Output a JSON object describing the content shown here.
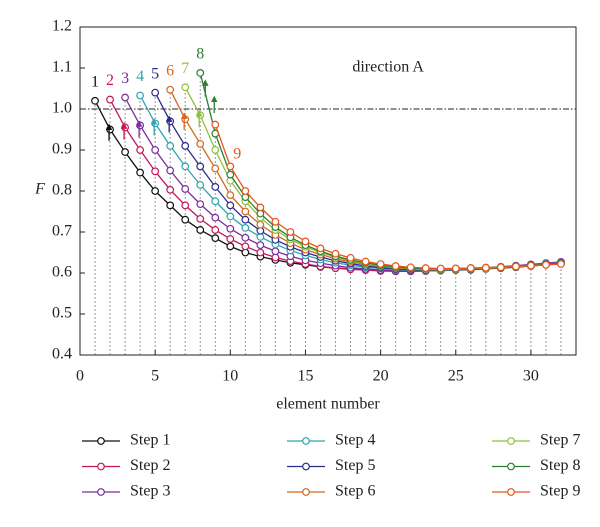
{
  "chart_data": {
    "type": "line",
    "xlabel": "element number",
    "ylabel": "F",
    "annotation": "direction A",
    "peak_labels": [
      "1",
      "2",
      "3",
      "4",
      "5",
      "6",
      "7",
      "8",
      "9"
    ],
    "reference_line": 1,
    "x": [
      1,
      2,
      3,
      4,
      5,
      6,
      7,
      8,
      9,
      10,
      11,
      12,
      13,
      14,
      15,
      16,
      17,
      18,
      19,
      20,
      21,
      22,
      23,
      24,
      25,
      26,
      27,
      28,
      29,
      30,
      31,
      32
    ],
    "xlim": [
      0,
      33
    ],
    "xticks": [
      0,
      5,
      10,
      15,
      20,
      25,
      30
    ],
    "ylim": [
      0.4,
      1.2
    ],
    "yticks": [
      0.4,
      0.5,
      0.6,
      0.7,
      0.8,
      0.9,
      {
        "value": 1,
        "label": "1.0"
      },
      1.1,
      1.2
    ],
    "series": [
      {
        "name": "Step 1",
        "color": "#111111",
        "values": [
          1.02,
          0.95,
          0.895,
          0.845,
          0.8,
          0.765,
          0.73,
          0.705,
          0.685,
          0.665,
          0.65,
          0.64,
          0.632,
          0.625,
          0.62,
          0.615,
          0.612,
          0.61,
          0.608,
          0.606,
          0.605,
          0.605,
          0.605,
          0.606,
          0.607,
          0.608,
          0.61,
          0.612,
          0.614,
          0.617,
          0.62,
          0.623
        ]
      },
      {
        "name": "Step 2",
        "color": "#c2185b",
        "values": [
          null,
          1.023,
          0.955,
          0.9,
          0.848,
          0.803,
          0.765,
          0.732,
          0.705,
          0.683,
          0.665,
          0.65,
          0.638,
          0.629,
          0.622,
          0.616,
          0.612,
          0.609,
          0.607,
          0.605,
          0.604,
          0.604,
          0.605,
          0.606,
          0.608,
          0.61,
          0.612,
          0.614,
          0.617,
          0.62,
          0.623,
          0.626
        ]
      },
      {
        "name": "Step 3",
        "color": "#7b2d9e",
        "values": [
          null,
          null,
          1.028,
          0.96,
          0.9,
          0.85,
          0.805,
          0.768,
          0.735,
          0.708,
          0.686,
          0.668,
          0.653,
          0.641,
          0.631,
          0.624,
          0.618,
          0.613,
          0.61,
          0.607,
          0.606,
          0.605,
          0.605,
          0.606,
          0.608,
          0.61,
          0.612,
          0.615,
          0.618,
          0.621,
          0.624,
          0.627
        ]
      },
      {
        "name": "Step 4",
        "color": "#2ea5b0",
        "values": [
          null,
          null,
          null,
          1.033,
          0.965,
          0.91,
          0.86,
          0.815,
          0.775,
          0.738,
          0.71,
          0.688,
          0.67,
          0.655,
          0.643,
          0.633,
          0.625,
          0.619,
          0.614,
          0.611,
          0.608,
          0.607,
          0.606,
          0.606,
          0.607,
          0.609,
          0.611,
          0.613,
          0.616,
          0.619,
          0.622,
          0.625
        ]
      },
      {
        "name": "Step 5",
        "color": "#2c2c8c",
        "values": [
          null,
          null,
          null,
          null,
          1.04,
          0.97,
          0.91,
          0.86,
          0.81,
          0.765,
          0.73,
          0.703,
          0.681,
          0.664,
          0.65,
          0.639,
          0.63,
          0.623,
          0.617,
          0.613,
          0.61,
          0.608,
          0.607,
          0.607,
          0.608,
          0.609,
          0.611,
          0.613,
          0.615,
          0.618,
          0.621,
          0.624
        ]
      },
      {
        "name": "Step 6",
        "color": "#d2691e",
        "values": [
          null,
          null,
          null,
          null,
          null,
          1.047,
          0.975,
          0.915,
          0.855,
          0.79,
          0.75,
          0.718,
          0.693,
          0.673,
          0.657,
          0.645,
          0.635,
          0.627,
          0.621,
          0.616,
          0.612,
          0.61,
          0.608,
          0.608,
          0.609,
          0.61,
          0.611,
          0.613,
          0.615,
          0.617,
          0.62,
          0.623
        ]
      },
      {
        "name": "Step 7",
        "color": "#8fbf3f",
        "values": [
          null,
          null,
          null,
          null,
          null,
          null,
          1.053,
          0.985,
          0.9,
          0.825,
          0.775,
          0.735,
          0.705,
          0.682,
          0.664,
          0.65,
          0.639,
          0.63,
          0.623,
          0.618,
          0.614,
          0.611,
          0.61,
          0.609,
          0.61,
          0.611,
          0.612,
          0.614,
          0.616,
          0.618,
          0.62,
          0.623
        ]
      },
      {
        "name": "Step 8",
        "color": "#2e7d32",
        "values": [
          null,
          null,
          null,
          null,
          null,
          null,
          null,
          1.088,
          0.94,
          0.84,
          0.785,
          0.745,
          0.712,
          0.687,
          0.668,
          0.653,
          0.641,
          0.632,
          0.625,
          0.619,
          0.615,
          0.612,
          0.611,
          0.61,
          0.611,
          0.612,
          0.613,
          0.615,
          0.617,
          0.619,
          0.621,
          0.624
        ]
      },
      {
        "name": "Step 9",
        "color": "#e8541c",
        "values": [
          null,
          null,
          null,
          null,
          null,
          null,
          null,
          null,
          0.962,
          0.86,
          0.8,
          0.76,
          0.725,
          0.7,
          0.677,
          0.66,
          0.647,
          0.637,
          0.628,
          0.622,
          0.617,
          0.614,
          0.612,
          0.611,
          0.611,
          0.612,
          0.613,
          0.614,
          0.616,
          0.618,
          0.62,
          0.622
        ]
      }
    ]
  }
}
